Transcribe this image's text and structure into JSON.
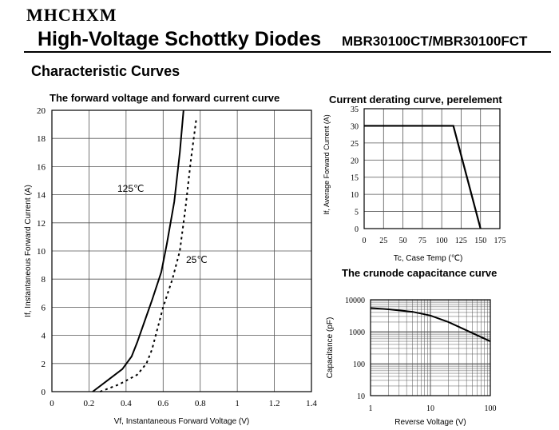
{
  "header": {
    "brand": "MHCHXM",
    "title": "High-Voltage Schottky Diodes",
    "part_number": "MBR30100CT/MBR30100FCT"
  },
  "section_title": "Characteristic Curves",
  "chart_data": [
    {
      "type": "line",
      "title": "The forward voltage and forward current curve",
      "xlabel": "Vf, Instantaneous Forward Voltage (V)",
      "ylabel": "If, Instantaneous Forward Current (A)",
      "xlim": [
        0,
        1.4
      ],
      "ylim": [
        0,
        20
      ],
      "x_ticks": [
        "0",
        "0.2",
        "0.4",
        "0.6",
        "0.8",
        "1",
        "1.2",
        "1.4"
      ],
      "y_ticks": [
        "0",
        "2",
        "4",
        "6",
        "8",
        "10",
        "12",
        "14",
        "16",
        "18",
        "20"
      ],
      "grid": true,
      "series": [
        {
          "name": "125℃",
          "style": "solid",
          "color": "#000000",
          "x": [
            0.22,
            0.3,
            0.38,
            0.43,
            0.46,
            0.5,
            0.54,
            0.59,
            0.62,
            0.66,
            0.69,
            0.71
          ],
          "y": [
            0,
            0.8,
            1.6,
            2.5,
            3.5,
            5.0,
            6.5,
            8.5,
            10.5,
            13.5,
            17.0,
            20.0
          ]
        },
        {
          "name": "25℃",
          "style": "dotted",
          "color": "#000000",
          "x": [
            0.26,
            0.36,
            0.46,
            0.51,
            0.54,
            0.57,
            0.6,
            0.65,
            0.69,
            0.72,
            0.75,
            0.78
          ],
          "y": [
            0,
            0.5,
            1.2,
            2.0,
            3.0,
            4.5,
            6.0,
            8.0,
            10.0,
            13.0,
            16.5,
            19.5
          ]
        }
      ]
    },
    {
      "type": "line",
      "title": "Current derating curve, perelement",
      "xlabel": "Tc, Case Temp (℃)",
      "ylabel": "If, Average Forward Current (A)",
      "xlim": [
        0,
        175
      ],
      "ylim": [
        0,
        35
      ],
      "x_ticks": [
        "0",
        "25",
        "50",
        "75",
        "100",
        "125",
        "150",
        "175"
      ],
      "y_ticks": [
        "0",
        "5",
        "10",
        "15",
        "20",
        "25",
        "30",
        "35"
      ],
      "grid": true,
      "series": [
        {
          "x": [
            0,
            115,
            150
          ],
          "y": [
            30,
            30,
            0
          ]
        }
      ]
    },
    {
      "type": "line",
      "title": "The crunode capacitance curve",
      "xlabel": "Reverse Voltage (V)",
      "ylabel": "Capacitance (pF)",
      "x_scale": "log",
      "y_scale": "log",
      "xlim": [
        1,
        100
      ],
      "ylim": [
        10,
        10000
      ],
      "x_ticks": [
        "1",
        "10",
        "100"
      ],
      "y_ticks": [
        "10",
        "100",
        "1000",
        "10000"
      ],
      "grid": true,
      "series": [
        {
          "x": [
            1,
            2,
            5,
            10,
            20,
            40,
            100
          ],
          "y": [
            5500,
            5000,
            4200,
            3200,
            2000,
            1100,
            500
          ]
        }
      ]
    }
  ],
  "curve_labels": {
    "hot": "125℃",
    "cold": "25℃"
  }
}
